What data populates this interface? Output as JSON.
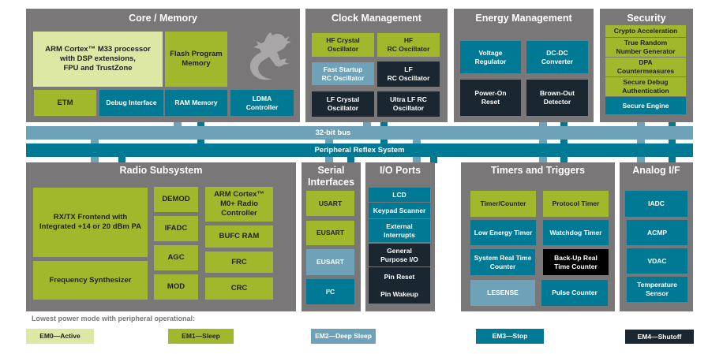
{
  "colors": {
    "panel": "#7a7778",
    "em0": "#dce8a4",
    "em1": "#a2b82c",
    "em2": "#6da2b8",
    "em3": "#007a94",
    "em4": "#1b2730",
    "black": "#000000"
  },
  "core": {
    "title": "Core / Memory",
    "arm": "ARM Cortex™ M33 processor\nwith DSP extensions,\nFPU and TrustZone",
    "flash": "Flash Program\nMemory",
    "etm": "ETM",
    "debug": "Debug Interface",
    "ram": "RAM Memory",
    "ldma": "LDMA\nController",
    "logo": "gecko-icon"
  },
  "clock": {
    "title": "Clock Management",
    "hfxo": "HF Crystal\nOscillator",
    "hfrco": "HF\nRC Oscillator",
    "fsrco": "Fast Startup\nRC Oscillator",
    "lfrco": "LF\nRC Oscillator",
    "lfxo": "LF Crystal\nOscillator",
    "ulfrco": "Ultra LF RC\nOscillator"
  },
  "energy": {
    "title": "Energy Management",
    "vreg": "Voltage\nRegulator",
    "dcdc": "DC-DC\nConverter",
    "por": "Power-On\nReset",
    "bod": "Brown-Out\nDetector"
  },
  "security": {
    "title": "Security",
    "items": [
      "Crypto Acceleration",
      "True Random\nNumber Generator",
      "DPA\nCountermeasures",
      "Secure Debug\nAuthentication",
      "Secure Engine"
    ]
  },
  "bus": {
    "bus32": "32-bit bus",
    "prs": "Peripheral Reflex System"
  },
  "radio": {
    "title": "Radio Subsystem",
    "frontend": "RX/TX Frontend with\nIntegrated +14 or 20 dBm PA",
    "synth": "Frequency Synthesizer",
    "demod": "DEMOD",
    "ifadc": "IFADC",
    "agc": "AGC",
    "mod": "MOD",
    "m0": "ARM Cortex™\nM0+ Radio\nController",
    "bufc": "BUFC RAM",
    "frc": "FRC",
    "crc": "CRC"
  },
  "serial": {
    "title": "Serial\nInterfaces",
    "items": [
      "USART",
      "EUSART",
      "EUSART",
      "I²C"
    ]
  },
  "io": {
    "title": "I/O Ports",
    "items": [
      "LCD",
      "Keypad Scanner",
      "External\nInterrupts",
      "General\nPurpose I/O",
      "Pin Reset\n\nPin Wakeup"
    ]
  },
  "timers": {
    "title": "Timers and Triggers",
    "items": [
      "Timer/Counter",
      "Protocol Timer",
      "Low Energy Timer",
      "Watchdog Timer",
      "System Real Time\nCounter",
      "Back-Up Real\nTime Counter",
      "LESENSE",
      "Pulse Counter"
    ]
  },
  "analog": {
    "title": "Analog I/F",
    "items": [
      "IADC",
      "ACMP",
      "VDAC",
      "Temperature\nSensor"
    ]
  },
  "legend": {
    "caption": "Lowest power mode with peripheral operational:",
    "items": [
      "EM0—Active",
      "EM1—Sleep",
      "EM2—Deep Sleep",
      "EM3—Stop",
      "EM4—Shutoff"
    ]
  }
}
